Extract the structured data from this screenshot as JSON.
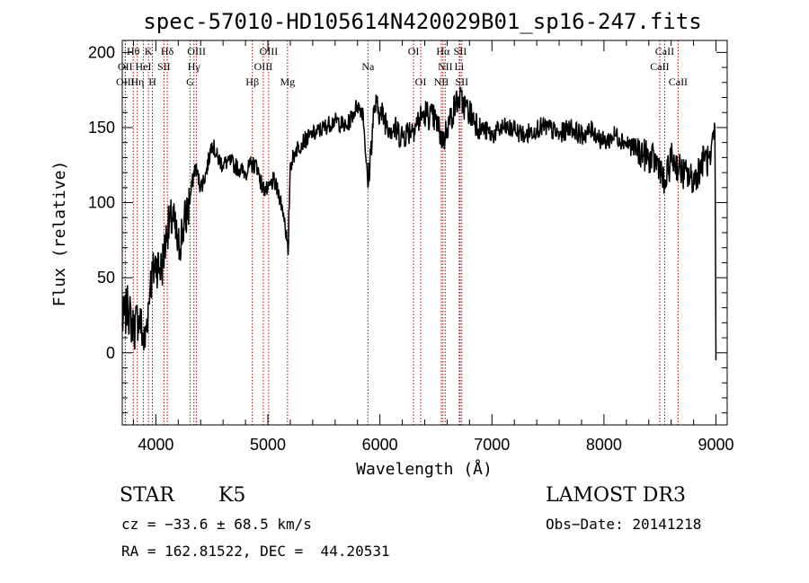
{
  "chart_data": {
    "type": "line",
    "title": "spec-57010-HD105614N420029B01_sp16-247.fits",
    "xlabel": "Wavelength (Å)",
    "ylabel": "Flux (relative)",
    "xlim": [
      3700,
      9100
    ],
    "ylim": [
      -48,
      208
    ],
    "x_ticks": [
      4000,
      5000,
      6000,
      7000,
      8000,
      9000
    ],
    "y_ticks": [
      0,
      50,
      100,
      150,
      200
    ],
    "series": [
      {
        "name": "flux",
        "x": [
          3700,
          3750,
          3800,
          3850,
          3900,
          3950,
          4000,
          4050,
          4100,
          4150,
          4200,
          4250,
          4300,
          4350,
          4400,
          4450,
          4500,
          4550,
          4600,
          4650,
          4700,
          4750,
          4800,
          4850,
          4900,
          4950,
          5000,
          5050,
          5100,
          5150,
          5180,
          5200,
          5250,
          5300,
          5400,
          5500,
          5600,
          5700,
          5800,
          5850,
          5893,
          5950,
          6000,
          6100,
          6200,
          6300,
          6400,
          6500,
          6563,
          6600,
          6700,
          6800,
          6900,
          7000,
          7100,
          7200,
          7300,
          7400,
          7500,
          7600,
          7700,
          7800,
          7900,
          8000,
          8100,
          8200,
          8300,
          8400,
          8500,
          8540,
          8600,
          8700,
          8800,
          8900,
          8950,
          8990,
          9000
        ],
        "y": [
          20,
          30,
          15,
          25,
          5,
          45,
          60,
          55,
          80,
          90,
          70,
          85,
          100,
          125,
          110,
          120,
          140,
          130,
          125,
          128,
          125,
          122,
          120,
          125,
          125,
          110,
          108,
          115,
          105,
          90,
          65,
          125,
          135,
          140,
          145,
          150,
          155,
          150,
          165,
          160,
          110,
          165,
          160,
          150,
          145,
          150,
          160,
          155,
          140,
          150,
          170,
          160,
          150,
          145,
          150,
          148,
          145,
          150,
          150,
          145,
          150,
          145,
          148,
          140,
          145,
          140,
          135,
          130,
          125,
          110,
          130,
          120,
          115,
          130,
          125,
          150,
          -5
        ]
      }
    ],
    "spectral_lines": [
      {
        "label": "Hθ",
        "wavelength": 3798,
        "row": 0
      },
      {
        "label": "OII",
        "wavelength": 3727,
        "row": 1
      },
      {
        "label": "OIII",
        "wavelength": 3727,
        "row": 2
      },
      {
        "label": "K",
        "wavelength": 3934,
        "row": 0
      },
      {
        "label": "HeI",
        "wavelength": 3889,
        "row": 1
      },
      {
        "label": "Hη",
        "wavelength": 3835,
        "row": 2
      },
      {
        "label": "Hδ",
        "wavelength": 4102,
        "row": 0
      },
      {
        "label": "SII",
        "wavelength": 4072,
        "row": 1
      },
      {
        "label": "H",
        "wavelength": 3969,
        "row": 2
      },
      {
        "label": "OIII",
        "wavelength": 4363,
        "row": 0
      },
      {
        "label": "Hγ",
        "wavelength": 4340,
        "row": 1
      },
      {
        "label": "G",
        "wavelength": 4305,
        "row": 2
      },
      {
        "label": "Hβ",
        "wavelength": 4861,
        "row": 2
      },
      {
        "label": "OIII",
        "wavelength": 5007,
        "row": 0
      },
      {
        "label": "OIII",
        "wavelength": 4959,
        "row": 1
      },
      {
        "label": "Mg",
        "wavelength": 5175,
        "row": 2
      },
      {
        "label": "Na",
        "wavelength": 5893,
        "row": 1
      },
      {
        "label": "OI",
        "wavelength": 6300,
        "row": 0
      },
      {
        "label": "OI",
        "wavelength": 6364,
        "row": 2
      },
      {
        "label": "Hα",
        "wavelength": 6563,
        "row": 0
      },
      {
        "label": "SII",
        "wavelength": 6716,
        "row": 0
      },
      {
        "label": "NII",
        "wavelength": 6583,
        "row": 1
      },
      {
        "label": "Li",
        "wavelength": 6708,
        "row": 1
      },
      {
        "label": "NII",
        "wavelength": 6548,
        "row": 2
      },
      {
        "label": "SII",
        "wavelength": 6731,
        "row": 2
      },
      {
        "label": "CaII",
        "wavelength": 8542,
        "row": 0
      },
      {
        "label": "CaII",
        "wavelength": 8498,
        "row": 1
      },
      {
        "label": "CaII",
        "wavelength": 8662,
        "row": 2
      }
    ]
  },
  "info": {
    "class": "STAR",
    "subclass": "K5",
    "survey": "LAMOST DR3",
    "cz": "cz = −33.6 ± 68.5 km/s",
    "obs_date": "Obs−Date: 20141218",
    "coords": "RA = 162.81522, DEC =  44.20531"
  }
}
